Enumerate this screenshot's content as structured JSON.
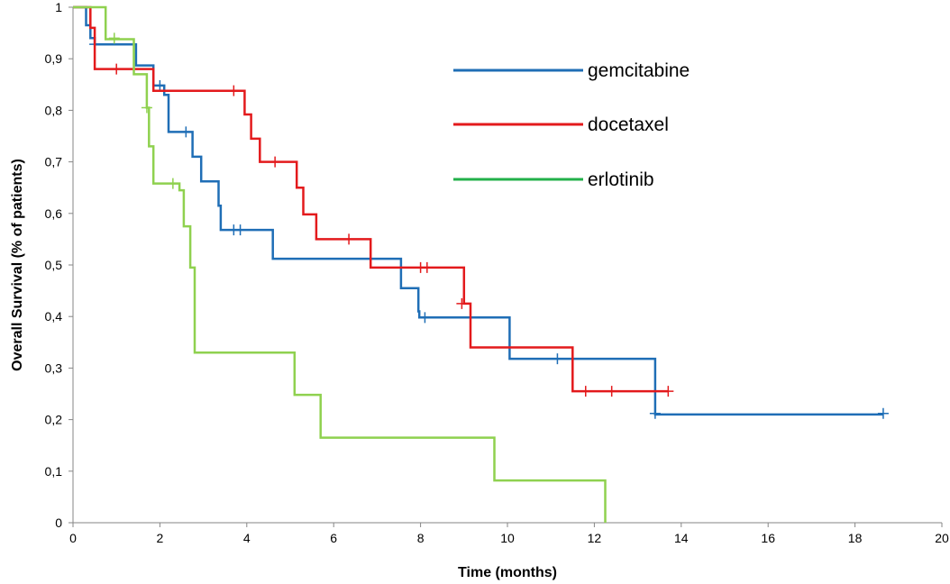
{
  "chart_data": {
    "type": "line",
    "step": true,
    "title": "",
    "xlabel": "Time (months)",
    "ylabel": "Overall Survival (% of patients)",
    "xlim": [
      0,
      20
    ],
    "ylim": [
      0,
      1
    ],
    "x_ticks": [
      "0",
      "2",
      "4",
      "6",
      "8",
      "10",
      "12",
      "14",
      "16",
      "18",
      "20"
    ],
    "y_ticks": [
      "0",
      "0,1",
      "0,2",
      "0,3",
      "0,4",
      "0,5",
      "0,6",
      "0,7",
      "0,8",
      "0,9",
      "1"
    ],
    "grid": false,
    "legend_position": "top-right",
    "series": [
      {
        "name": "gemcitabine",
        "color": "#1f6eb6",
        "steps": [
          [
            0,
            1
          ],
          [
            0.3,
            0.965
          ],
          [
            0.4,
            0.94
          ],
          [
            0.5,
            0.928
          ],
          [
            1.45,
            0.887
          ],
          [
            1.85,
            0.848
          ],
          [
            2.1,
            0.83
          ],
          [
            2.2,
            0.758
          ],
          [
            2.75,
            0.71
          ],
          [
            2.95,
            0.662
          ],
          [
            3.35,
            0.615
          ],
          [
            3.4,
            0.568
          ],
          [
            4.6,
            0.512
          ],
          [
            7.55,
            0.455
          ],
          [
            7.95,
            0.41
          ],
          [
            7.97,
            0.398
          ],
          [
            10.05,
            0.318
          ],
          [
            13.4,
            0.21
          ],
          [
            18.65,
            0.21
          ]
        ],
        "censored": [
          [
            0.5,
            0.928
          ],
          [
            2.0,
            0.848
          ],
          [
            2.6,
            0.758
          ],
          [
            3.7,
            0.568
          ],
          [
            3.85,
            0.568
          ],
          [
            8.1,
            0.398
          ],
          [
            11.15,
            0.318
          ],
          [
            13.4,
            0.212
          ],
          [
            18.65,
            0.212
          ]
        ]
      },
      {
        "name": "docetaxel",
        "color": "#e31a1c",
        "steps": [
          [
            0,
            1
          ],
          [
            0.4,
            0.96
          ],
          [
            0.5,
            0.88
          ],
          [
            1.85,
            0.838
          ],
          [
            3.95,
            0.792
          ],
          [
            4.1,
            0.745
          ],
          [
            4.3,
            0.7
          ],
          [
            5.15,
            0.65
          ],
          [
            5.3,
            0.598
          ],
          [
            5.6,
            0.55
          ],
          [
            6.85,
            0.495
          ],
          [
            9.0,
            0.425
          ],
          [
            9.15,
            0.34
          ],
          [
            11.5,
            0.255
          ],
          [
            13.7,
            0.255
          ]
        ],
        "censored": [
          [
            1.0,
            0.88
          ],
          [
            3.7,
            0.838
          ],
          [
            4.65,
            0.7
          ],
          [
            6.35,
            0.55
          ],
          [
            8.0,
            0.495
          ],
          [
            8.15,
            0.495
          ],
          [
            8.95,
            0.425
          ],
          [
            11.8,
            0.255
          ],
          [
            12.4,
            0.255
          ],
          [
            13.7,
            0.255
          ]
        ]
      },
      {
        "name": "erlotinib",
        "color": "#8fd14f",
        "steps": [
          [
            0,
            1
          ],
          [
            0.75,
            0.938
          ],
          [
            1.4,
            0.87
          ],
          [
            1.7,
            0.805
          ],
          [
            1.75,
            0.73
          ],
          [
            1.85,
            0.658
          ],
          [
            2.45,
            0.645
          ],
          [
            2.55,
            0.575
          ],
          [
            2.7,
            0.495
          ],
          [
            2.8,
            0.33
          ],
          [
            5.1,
            0.248
          ],
          [
            5.7,
            0.165
          ],
          [
            9.7,
            0.082
          ],
          [
            12.25,
            0
          ]
        ],
        "censored": [
          [
            0.95,
            0.94
          ],
          [
            1.7,
            0.805
          ],
          [
            2.3,
            0.658
          ]
        ]
      }
    ],
    "legend_line_color_erlotinib": "#22b04a"
  }
}
